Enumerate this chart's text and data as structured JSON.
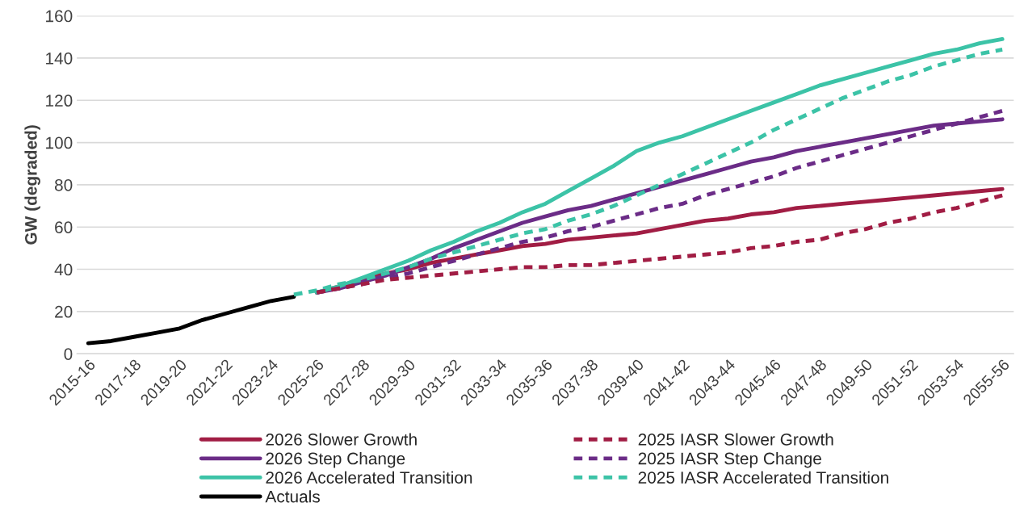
{
  "chart_data": {
    "type": "line",
    "ylabel": "GW (degraded)",
    "categories": [
      "2015-16",
      null,
      "2017-18",
      null,
      "2019-20",
      null,
      "2021-22",
      null,
      "2023-24",
      null,
      "2025-26",
      null,
      "2027-28",
      null,
      "2029-30",
      null,
      "2031-32",
      null,
      "2033-34",
      null,
      "2035-36",
      null,
      "2037-38",
      null,
      "2039-40",
      null,
      "2041-42",
      null,
      "2043-44",
      null,
      "2045-46",
      null,
      "2047-48",
      null,
      "2049-50",
      null,
      "2051-52",
      null,
      "2053-54",
      null,
      "2055-56"
    ],
    "series": [
      {
        "name": "2026 Slower Growth",
        "color": "#a11d44",
        "line_style": "solid",
        "values": [
          null,
          null,
          null,
          null,
          null,
          null,
          null,
          null,
          null,
          null,
          29,
          32,
          35,
          38,
          40,
          43,
          45,
          47,
          49,
          51,
          52,
          54,
          55,
          56,
          57,
          59,
          61,
          63,
          64,
          66,
          67,
          69,
          70,
          71,
          72,
          73,
          74,
          75,
          76,
          77,
          78
        ]
      },
      {
        "name": "2026 Step Change",
        "color": "#6b2c87",
        "line_style": "solid",
        "values": [
          null,
          null,
          null,
          null,
          null,
          null,
          null,
          null,
          null,
          null,
          29,
          31,
          34,
          37,
          41,
          45,
          50,
          54,
          58,
          62,
          65,
          68,
          70,
          73,
          76,
          79,
          82,
          85,
          88,
          91,
          93,
          96,
          98,
          100,
          102,
          104,
          106,
          108,
          109,
          110,
          111
        ]
      },
      {
        "name": "2026 Accelerated Transition",
        "color": "#3cc3a7",
        "line_style": "solid",
        "values": [
          null,
          null,
          null,
          null,
          null,
          null,
          null,
          null,
          null,
          null,
          29,
          32,
          36,
          40,
          44,
          49,
          53,
          58,
          62,
          67,
          71,
          77,
          83,
          89,
          96,
          100,
          103,
          107,
          111,
          115,
          119,
          123,
          127,
          130,
          133,
          136,
          139,
          142,
          144,
          147,
          149
        ]
      },
      {
        "name": "Actuals",
        "color": "#000000",
        "line_style": "solid",
        "values": [
          5,
          6,
          8,
          10,
          12,
          16,
          19,
          22,
          25,
          27,
          null,
          null,
          null,
          null,
          null,
          null,
          null,
          null,
          null,
          null,
          null,
          null,
          null,
          null,
          null,
          null,
          null,
          null,
          null,
          null,
          null,
          null,
          null,
          null,
          null,
          null,
          null,
          null,
          null,
          null,
          null
        ]
      },
      {
        "name": "2025 IASR Slower Growth",
        "color": "#a11d44",
        "line_style": "dashed",
        "values": [
          null,
          null,
          null,
          null,
          null,
          null,
          null,
          null,
          null,
          null,
          29,
          31,
          33,
          35,
          36,
          37,
          38,
          39,
          40,
          41,
          41,
          42,
          42,
          43,
          44,
          45,
          46,
          47,
          48,
          50,
          51,
          53,
          54,
          57,
          59,
          62,
          64,
          67,
          69,
          72,
          75
        ]
      },
      {
        "name": "2025 IASR Step Change",
        "color": "#6b2c87",
        "line_style": "dashed",
        "values": [
          null,
          null,
          null,
          null,
          null,
          null,
          null,
          null,
          null,
          null,
          29,
          31,
          33,
          36,
          38,
          41,
          44,
          47,
          50,
          53,
          55,
          58,
          60,
          63,
          66,
          69,
          71,
          75,
          78,
          81,
          84,
          88,
          91,
          94,
          97,
          100,
          103,
          106,
          109,
          112,
          115
        ]
      },
      {
        "name": "2025 IASR Accelerated Transition",
        "color": "#3cc3a7",
        "line_style": "dashed",
        "values": [
          null,
          null,
          null,
          null,
          null,
          null,
          null,
          null,
          null,
          28,
          30,
          33,
          35,
          38,
          41,
          45,
          48,
          51,
          54,
          57,
          59,
          63,
          66,
          70,
          75,
          80,
          85,
          90,
          95,
          100,
          106,
          111,
          116,
          121,
          125,
          129,
          132,
          136,
          139,
          142,
          144
        ]
      }
    ],
    "ylim": [
      0,
      160
    ],
    "yticks": [
      0,
      20,
      40,
      60,
      80,
      100,
      120,
      140,
      160
    ],
    "grid": "y",
    "legend": "bottom"
  }
}
